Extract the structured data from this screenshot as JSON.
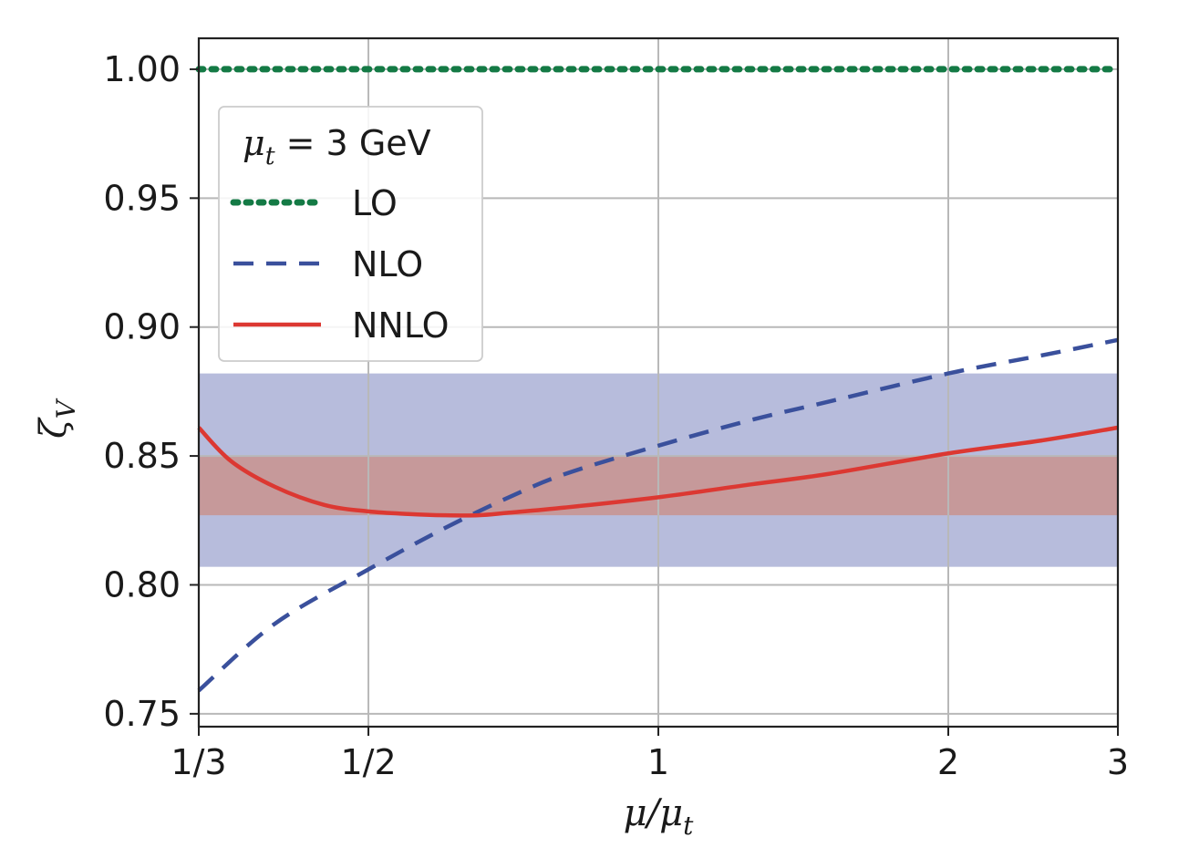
{
  "chart_data": {
    "type": "line",
    "xlabel": "μ/μ_t",
    "ylabel": "ζ_V",
    "x_scale": "log",
    "xlim": [
      0.3333,
      3.0
    ],
    "ylim": [
      0.745,
      1.012
    ],
    "x_ticks": [
      {
        "value": 0.3333,
        "label": "1/3"
      },
      {
        "value": 0.5,
        "label": "1/2"
      },
      {
        "value": 1,
        "label": "1"
      },
      {
        "value": 2,
        "label": "2"
      },
      {
        "value": 3,
        "label": "3"
      }
    ],
    "y_ticks": [
      {
        "value": 0.75,
        "label": "0.75"
      },
      {
        "value": 0.8,
        "label": "0.80"
      },
      {
        "value": 0.85,
        "label": "0.85"
      },
      {
        "value": 0.9,
        "label": "0.90"
      },
      {
        "value": 0.95,
        "label": "0.95"
      },
      {
        "value": 1.0,
        "label": "1.00"
      }
    ],
    "grid": true,
    "legend": {
      "placement": "upper-left",
      "title_main": "μ",
      "title_sub": "t",
      "title_rest": " = 3 GeV"
    },
    "bands": [
      {
        "name": "NLO band",
        "y_low": 0.807,
        "y_high": 0.882,
        "color": "#b7bcdc"
      },
      {
        "name": "NNLO band",
        "y_low": 0.827,
        "y_high": 0.85,
        "color": "#c6999a"
      }
    ],
    "series": [
      {
        "name": "LO",
        "style": "dotted",
        "color": "#147a45",
        "x": [
          0.3333,
          0.5,
          1,
          2,
          3
        ],
        "y": [
          1.0,
          1.0,
          1.0,
          1.0,
          1.0
        ]
      },
      {
        "name": "NLO",
        "style": "dashed",
        "color": "#3a509c",
        "x": [
          0.3333,
          0.4,
          0.5,
          0.6,
          0.7,
          0.8,
          1.0,
          1.25,
          1.5,
          2.0,
          2.5,
          3.0
        ],
        "y": [
          0.759,
          0.785,
          0.806,
          0.822,
          0.834,
          0.843,
          0.854,
          0.864,
          0.871,
          0.882,
          0.889,
          0.895
        ]
      },
      {
        "name": "NNLO",
        "style": "solid",
        "color": "#dc3832",
        "x": [
          0.3333,
          0.36,
          0.4,
          0.45,
          0.5,
          0.55,
          0.6,
          0.65,
          0.7,
          0.8,
          1.0,
          1.25,
          1.5,
          2.0,
          2.5,
          3.0
        ],
        "y": [
          0.861,
          0.848,
          0.838,
          0.831,
          0.8285,
          0.8275,
          0.827,
          0.827,
          0.828,
          0.83,
          0.834,
          0.839,
          0.843,
          0.851,
          0.856,
          0.861
        ]
      }
    ]
  }
}
